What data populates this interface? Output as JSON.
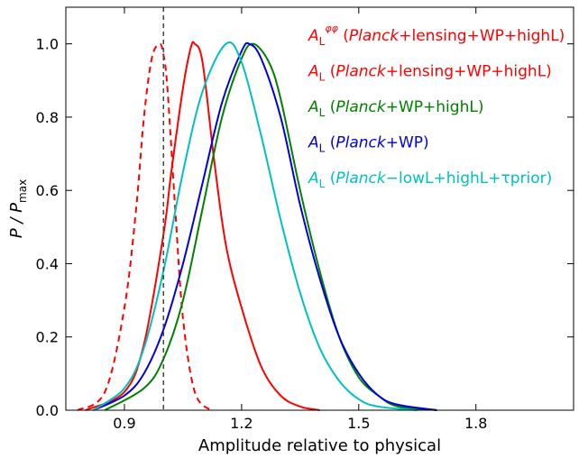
{
  "chart_data": {
    "type": "line",
    "xlabel": "Amplitude relative to physical",
    "ylabel_main": "P / P",
    "ylabel_sub": "max",
    "xlim": [
      0.75,
      2.05
    ],
    "ylim": [
      0.0,
      1.1
    ],
    "xticks": [
      0.9,
      1.2,
      1.5,
      1.8
    ],
    "xtick_labels": [
      "0.9",
      "1.2",
      "1.5",
      "1.8"
    ],
    "yticks": [
      0.0,
      0.2,
      0.4,
      0.6,
      0.8,
      1.0
    ],
    "ytick_labels": [
      "0.0",
      "0.2",
      "0.4",
      "0.6",
      "0.8",
      "1.0"
    ],
    "reference_line": {
      "x": 1.0,
      "style": "dashed",
      "color": "#444444"
    },
    "legend_position": "top-right",
    "series": [
      {
        "color": "#ff0000",
        "style": "dashed",
        "label": {
          "sym": "A",
          "sub": "L",
          "sup": "φφ",
          "open": " (",
          "italic": "Planck",
          "rest": "+lensing+WP+highL)"
        },
        "x": [
          0.78,
          0.85,
          0.9,
          0.93,
          0.95,
          0.97,
          0.99,
          1.0,
          1.01,
          1.03,
          1.05,
          1.08,
          1.12
        ],
        "y": [
          0.0,
          0.05,
          0.28,
          0.55,
          0.8,
          0.96,
          1.0,
          0.97,
          0.88,
          0.55,
          0.25,
          0.05,
          0.0
        ]
      },
      {
        "color": "#ff0000",
        "style": "solid",
        "label": {
          "sym": "A",
          "sub": "L",
          "sup": "",
          "open": " (",
          "italic": "Planck",
          "rest": "+lensing+WP+highL)"
        },
        "x": [
          0.8,
          0.9,
          0.95,
          1.0,
          1.02,
          1.05,
          1.07,
          1.08,
          1.1,
          1.13,
          1.16,
          1.2,
          1.25,
          1.3,
          1.35,
          1.4
        ],
        "y": [
          0.0,
          0.05,
          0.18,
          0.48,
          0.65,
          0.88,
          0.99,
          1.0,
          0.95,
          0.68,
          0.45,
          0.28,
          0.12,
          0.04,
          0.01,
          0.0
        ]
      },
      {
        "color": "#008000",
        "style": "solid",
        "label": {
          "sym": "A",
          "sub": "L",
          "sup": "",
          "open": " (",
          "italic": "Planck",
          "rest": "+WP+highL)"
        },
        "x": [
          0.85,
          0.95,
          1.0,
          1.05,
          1.1,
          1.15,
          1.2,
          1.23,
          1.27,
          1.3,
          1.35,
          1.4,
          1.45,
          1.5,
          1.55,
          1.6,
          1.7
        ],
        "y": [
          0.0,
          0.06,
          0.14,
          0.3,
          0.55,
          0.8,
          0.96,
          1.0,
          0.95,
          0.85,
          0.6,
          0.38,
          0.2,
          0.09,
          0.04,
          0.01,
          0.0
        ]
      },
      {
        "color": "#0000dd",
        "style": "solid",
        "label": {
          "sym": "A",
          "sub": "L",
          "sup": "",
          "open": " (",
          "italic": "Planck",
          "rest": "+WP)"
        },
        "x": [
          0.82,
          0.9,
          0.95,
          1.0,
          1.05,
          1.1,
          1.15,
          1.2,
          1.22,
          1.25,
          1.3,
          1.35,
          1.4,
          1.45,
          1.5,
          1.55,
          1.6,
          1.7
        ],
        "y": [
          0.0,
          0.04,
          0.1,
          0.22,
          0.4,
          0.62,
          0.84,
          0.98,
          1.0,
          0.96,
          0.8,
          0.56,
          0.36,
          0.2,
          0.1,
          0.04,
          0.015,
          0.0
        ]
      },
      {
        "color": "#00c0c0",
        "style": "solid",
        "label": {
          "sym": "A",
          "sub": "L",
          "sup": "",
          "open": " (",
          "italic": "Planck",
          "rest": "−lowL+highL+τprior)"
        },
        "x": [
          0.82,
          0.9,
          0.95,
          1.0,
          1.05,
          1.1,
          1.16,
          1.2,
          1.25,
          1.3,
          1.35,
          1.4,
          1.45,
          1.5,
          1.55,
          1.65
        ],
        "y": [
          0.0,
          0.06,
          0.17,
          0.38,
          0.65,
          0.87,
          1.0,
          0.95,
          0.75,
          0.52,
          0.32,
          0.17,
          0.08,
          0.03,
          0.01,
          0.0
        ]
      }
    ]
  }
}
